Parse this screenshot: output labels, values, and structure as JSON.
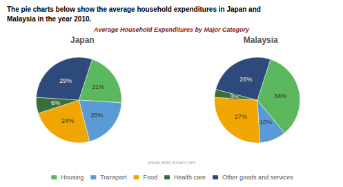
{
  "title": "Average Household Expenditures by Major Category",
  "annotations": [
    "The pie charts below show the average household expenditures in Japan and",
    "Malaysia in the year 2010.",
    "www.ielts-exam.net"
  ],
  "legend": "bottom",
  "chart_data": [
    {
      "type": "pie",
      "title": "Japan",
      "categories": [
        "Housing",
        "Transport",
        "Food",
        "Health care",
        "Other goods and services"
      ],
      "values": [
        21,
        20,
        24,
        6,
        29
      ],
      "value_labels": [
        "21%",
        "20%",
        "24%",
        "6%",
        "29%"
      ],
      "colors": [
        "#5cb85c",
        "#5b9bd5",
        "#f0a500",
        "#3a6e3a",
        "#2e4a7a"
      ],
      "data_labels": true
    },
    {
      "type": "pie",
      "title": "Malaysia",
      "categories": [
        "Housing",
        "Transport",
        "Food",
        "Health care",
        "Other goods and services"
      ],
      "values": [
        34,
        10,
        27,
        3,
        26
      ],
      "value_labels": [
        "34%",
        "10%",
        "27%",
        "3%",
        "26%"
      ],
      "colors": [
        "#5cb85c",
        "#5b9bd5",
        "#f0a500",
        "#3a6e3a",
        "#2e4a7a"
      ],
      "data_labels": true
    }
  ]
}
